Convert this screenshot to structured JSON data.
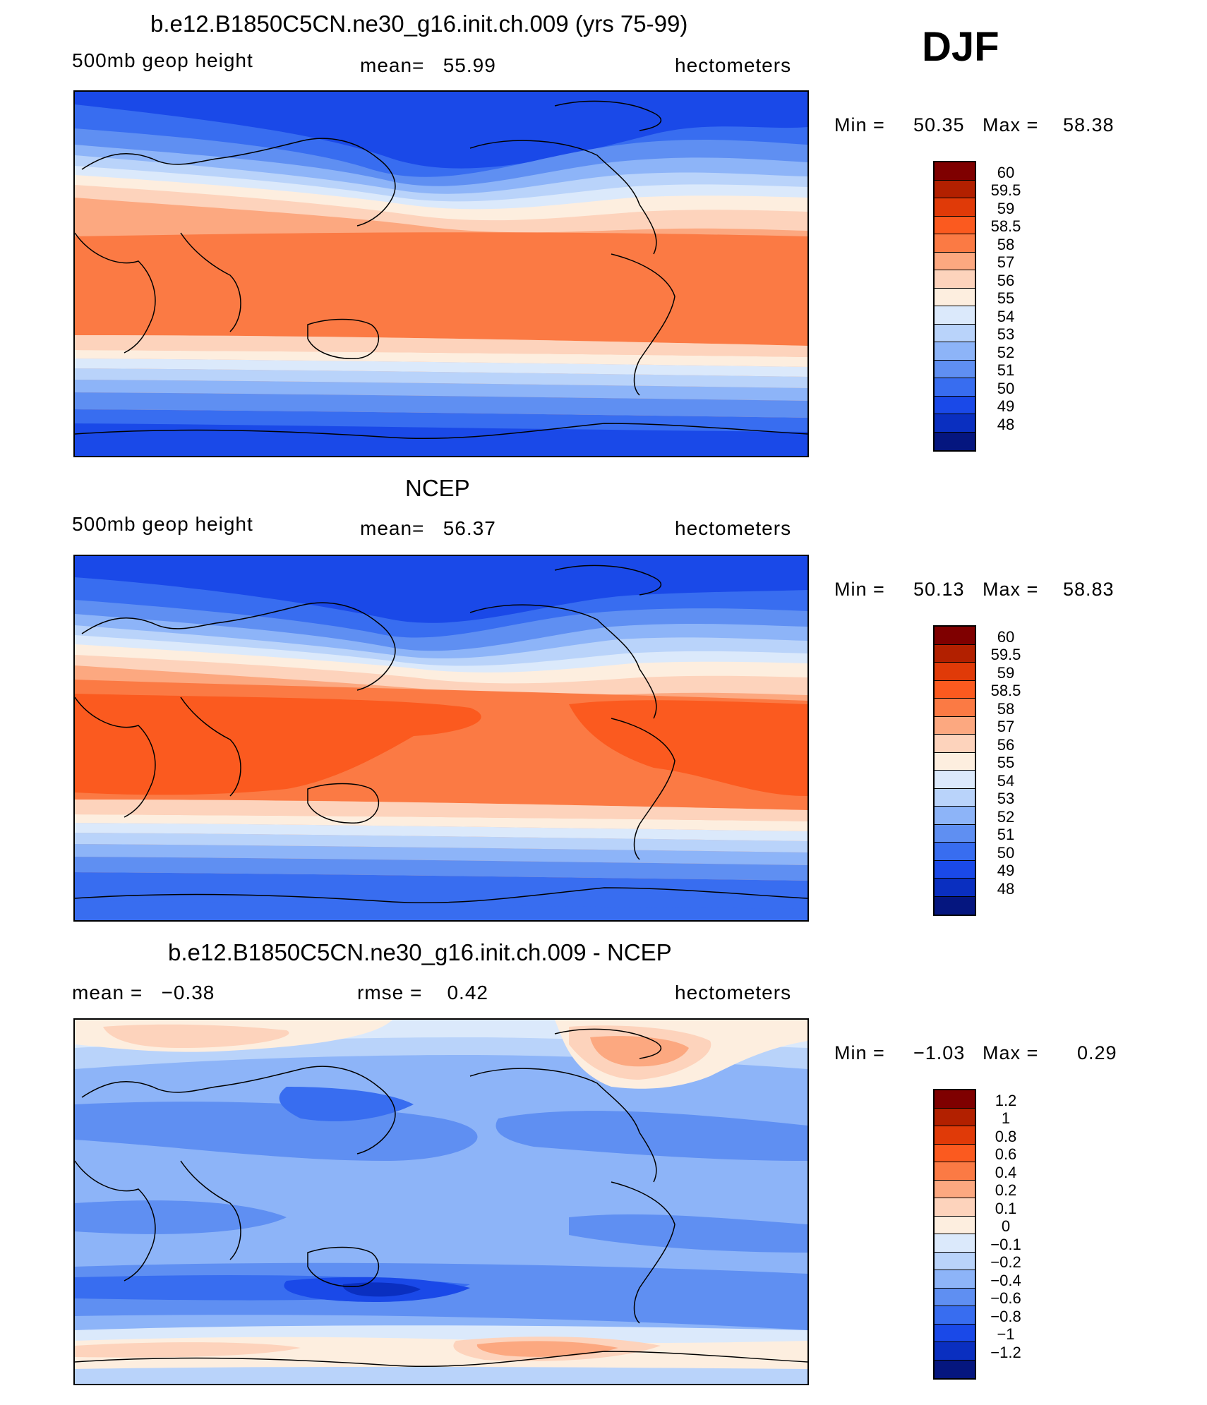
{
  "header": {
    "season": "DJF"
  },
  "panels": [
    {
      "id": "model",
      "title": "b.e12.B1850C5CN.ne30_g16.init.ch.009 (yrs 75-99)",
      "left_label": "500mb geop height",
      "center_label": "mean=   55.99",
      "units": "hectometers",
      "min_label": "Min =",
      "min_value": "50.35",
      "max_label": "Max =",
      "max_value": "58.38",
      "colorbar": {
        "labels": [
          "60",
          "59.5",
          "59",
          "58.5",
          "58",
          "57",
          "56",
          "55",
          "54",
          "53",
          "52",
          "51",
          "50",
          "49",
          "48"
        ],
        "colors": [
          "#7f0000",
          "#b22000",
          "#e03a08",
          "#fb5a1f",
          "#fb7a44",
          "#fca880",
          "#fdd3bc",
          "#fdeedf",
          "#dbe9fb",
          "#b9d3fa",
          "#8db4f8",
          "#5f8ff2",
          "#386df0",
          "#1a49e8",
          "#0a2fc0",
          "#05167f"
        ]
      }
    },
    {
      "id": "obs",
      "title": "NCEP",
      "left_label": "500mb geop height",
      "center_label": "mean=   56.37",
      "units": "hectometers",
      "min_label": "Min =",
      "min_value": "50.13",
      "max_label": "Max =",
      "max_value": "58.83",
      "colorbar": {
        "labels": [
          "60",
          "59.5",
          "59",
          "58.5",
          "58",
          "57",
          "56",
          "55",
          "54",
          "53",
          "52",
          "51",
          "50",
          "49",
          "48"
        ],
        "colors": [
          "#7f0000",
          "#b22000",
          "#e03a08",
          "#fb5a1f",
          "#fb7a44",
          "#fca880",
          "#fdd3bc",
          "#fdeedf",
          "#dbe9fb",
          "#b9d3fa",
          "#8db4f8",
          "#5f8ff2",
          "#386df0",
          "#1a49e8",
          "#0a2fc0",
          "#05167f"
        ]
      }
    },
    {
      "id": "diff",
      "title": "b.e12.B1850C5CN.ne30_g16.init.ch.009 - NCEP",
      "left_label": "mean =   −0.38",
      "center_label": "rmse =    0.42",
      "units": "hectometers",
      "min_label": "Min =",
      "min_value": "−1.03",
      "max_label": "Max =",
      "max_value": "0.29",
      "colorbar": {
        "labels": [
          "1.2",
          "1",
          "0.8",
          "0.6",
          "0.4",
          "0.2",
          "0.1",
          "0",
          "−0.1",
          "−0.2",
          "−0.4",
          "−0.6",
          "−0.8",
          "−1",
          "−1.2"
        ],
        "colors": [
          "#7f0000",
          "#b22000",
          "#e03a08",
          "#fb5a1f",
          "#fb7a44",
          "#fca880",
          "#fdd3bc",
          "#fdeedf",
          "#dbe9fb",
          "#b9d3fa",
          "#8db4f8",
          "#5f8ff2",
          "#386df0",
          "#1a49e8",
          "#0a2fc0",
          "#05167f"
        ]
      }
    }
  ]
}
